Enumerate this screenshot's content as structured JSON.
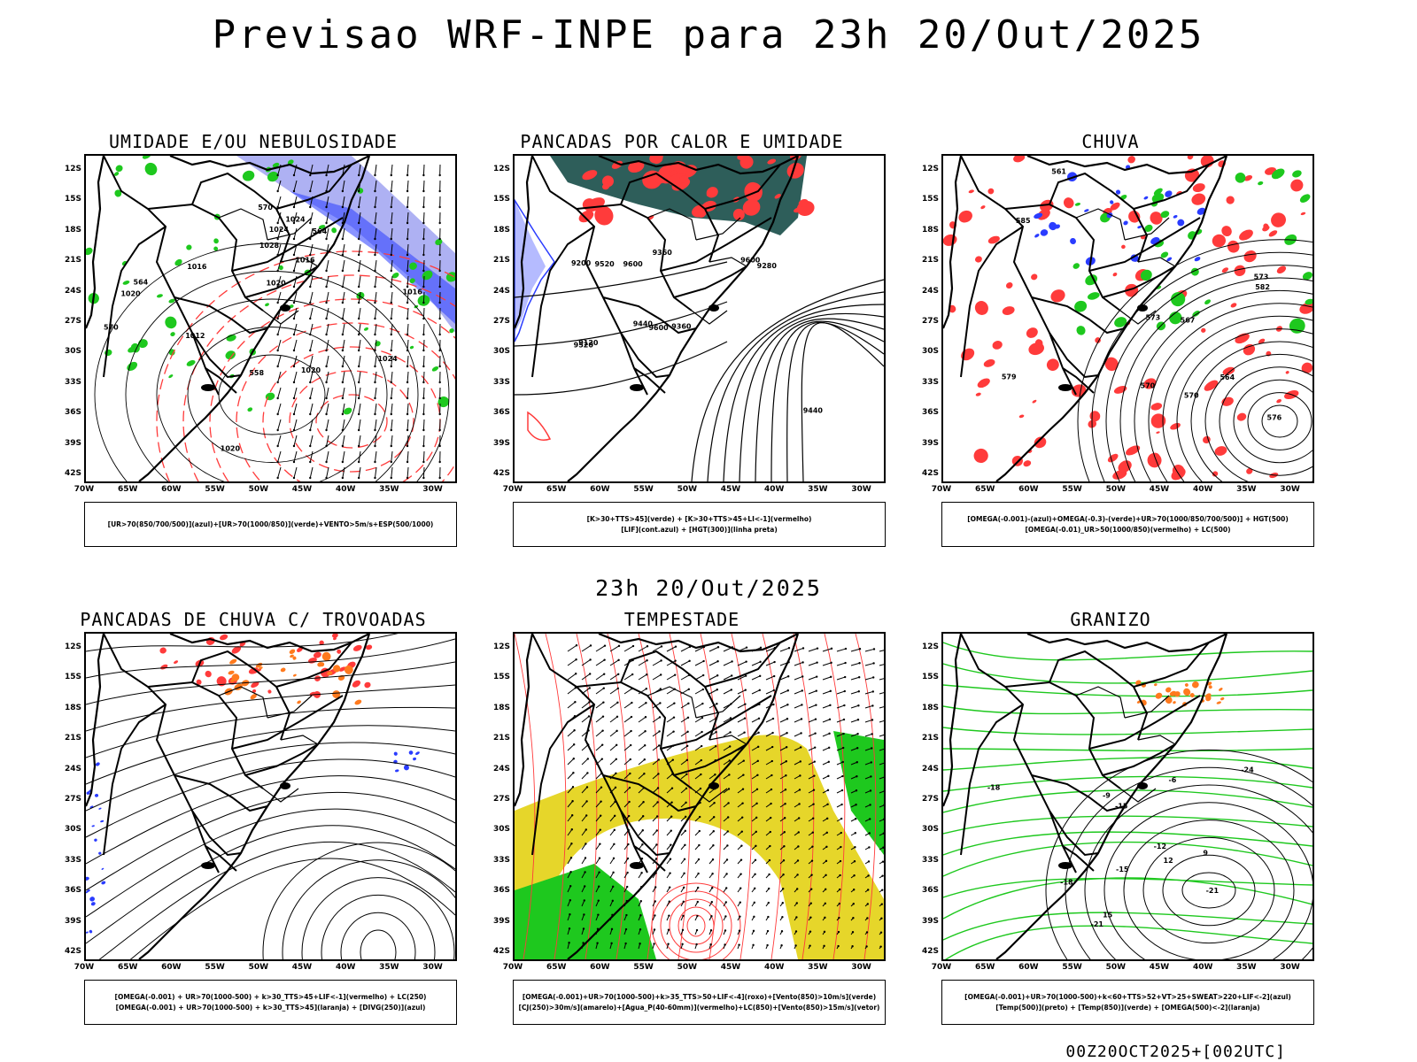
{
  "header": {
    "title": "Previsao WRF-INPE  para 23h 20/Out/2025",
    "subtitle": "23h 20/Out/2025",
    "footer": "00Z20OCT2025+[002UTC]"
  },
  "axes": {
    "lat_labels": [
      "12S",
      "15S",
      "18S",
      "21S",
      "24S",
      "27S",
      "30S",
      "33S",
      "36S",
      "39S",
      "42S"
    ],
    "lon_labels": [
      "70W",
      "65W",
      "60W",
      "55W",
      "50W",
      "45W",
      "40W",
      "35W",
      "30W"
    ]
  },
  "colors": {
    "red": "#ff3b3b",
    "green": "#1ec81e",
    "blue": "#2a3cff",
    "lavender": "#9a9ef0",
    "dark_teal": "#2e5e5a",
    "yellow": "#e6d62a",
    "orange": "#ff7a1e"
  },
  "panels": [
    {
      "title": "UMIDADE E/OU NEBULOSIDADE",
      "legend": [
        "[UR>70(850/700/500)](azul)+[UR>70(1000/850)](verde)+VENTO>5m/s+ESP(500/1000)"
      ],
      "labels": [
        "1016",
        "1016",
        "1020",
        "1020",
        "1024",
        "1024",
        "1028",
        "1020",
        "1012",
        "1016",
        "1020",
        "1024",
        "570",
        "570",
        "564",
        "564",
        "558"
      ]
    },
    {
      "title": "PANCADAS POR CALOR E UMIDADE",
      "legend": [
        "[K>30+TTS>45](verde) + [K>30+TTS>45+LI<-1](vermelho)",
        "[LIF](cont.azul) + [HGT(300)](linha preta)"
      ],
      "labels": [
        "9600",
        "9520",
        "9440",
        "9360",
        "9280",
        "9200",
        "9120",
        "9600",
        "9520",
        "9440",
        "9360",
        "9600"
      ]
    },
    {
      "title": "CHUVA",
      "legend": [
        "[OMEGA(-0.001)-(azul)+OMEGA(-0.3)-(verde)+UR>70(1000/850/700/500)] + HGT(500)",
        "[OMEGA(-0.01)_UR>50(1000/850)(vermelho) + LC(500)"
      ],
      "labels": [
        "582",
        "579",
        "576",
        "573",
        "570",
        "567",
        "564",
        "561",
        "585",
        "573",
        "570"
      ]
    },
    {
      "title": "PANCADAS DE CHUVA C/ TROVOADAS",
      "legend": [
        "[OMEGA(-0.001) + UR>70(1000-500) + k>30_TTS>45+LIF<-1](vermelho) + LC(250)",
        "[OMEGA(-0.001) + UR>70(1000-500) + k>30_TTS>45](laranja) + [DIVG(250)](azul)"
      ],
      "labels": []
    },
    {
      "title": "TEMPESTADE",
      "legend": [
        "[OMEGA(-0.001)+UR>70(1000-500)+k>35_TTS>50+LIF<-4](roxo)+[Vento(850)>10m/s](verde)",
        "[CJ(250)>30m/s](amarelo)+[Agua_P(40-60mm)](vermelho)+LC(850)+[Vento(850)>15m/s](vetor)"
      ],
      "labels": []
    },
    {
      "title": "GRANIZO",
      "legend": [
        "[OMEGA(-0.001)+UR>70(1000-500)+k<60+TTS>52+VT>25+SWEAT>220+LIF<-2](azul)",
        "[Temp(500)](preto) + [Temp(850)](verde) + [OMEGA(500)<-2](laranja)"
      ],
      "labels": [
        "-12",
        "-15",
        "-18",
        "-21",
        "-24",
        "-21",
        "-18",
        "-15",
        "-9",
        "-6",
        "12",
        "15",
        "9"
      ]
    }
  ]
}
